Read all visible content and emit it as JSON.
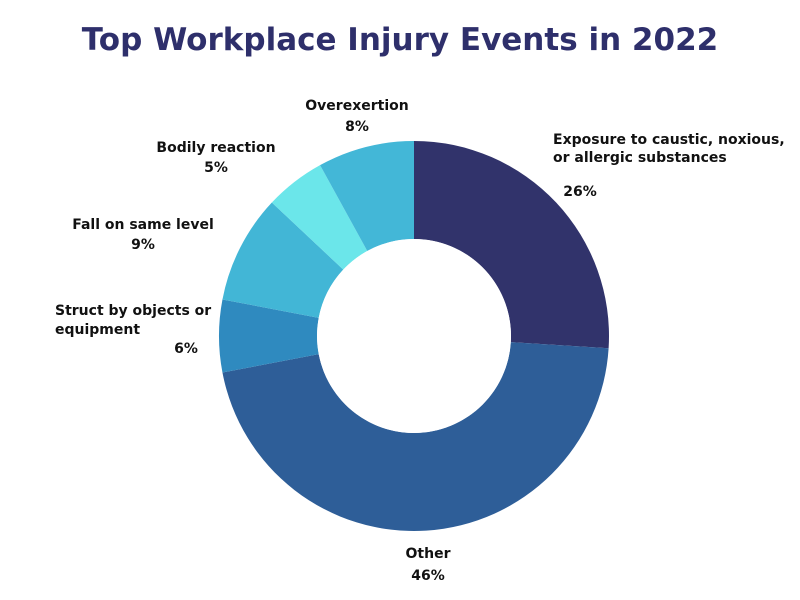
{
  "chart_data": {
    "type": "pie",
    "title": "Top Workplace Injury Events in 2022",
    "donut": true,
    "slices": [
      {
        "label_lines": [
          "Exposure to caustic, noxious,",
          "or allergic substances"
        ],
        "value_label": "26%",
        "value": 26,
        "color": "#31336b"
      },
      {
        "label_lines": [
          "Other"
        ],
        "value_label": "46%",
        "value": 46,
        "color": "#2e5e98"
      },
      {
        "label_lines": [
          "Struct by objects or",
          "equipment"
        ],
        "value_label": "6%",
        "value": 6,
        "color": "#2f8abf"
      },
      {
        "label_lines": [
          "Fall on same level"
        ],
        "value_label": "9%",
        "value": 9,
        "color": "#42b6d6"
      },
      {
        "label_lines": [
          "Bodily reaction"
        ],
        "value_label": "5%",
        "value": 5,
        "color": "#6be6ea"
      },
      {
        "label_lines": [
          "Overexertion"
        ],
        "value_label": "8%",
        "value": 8,
        "color": "#43b7d7"
      }
    ]
  }
}
